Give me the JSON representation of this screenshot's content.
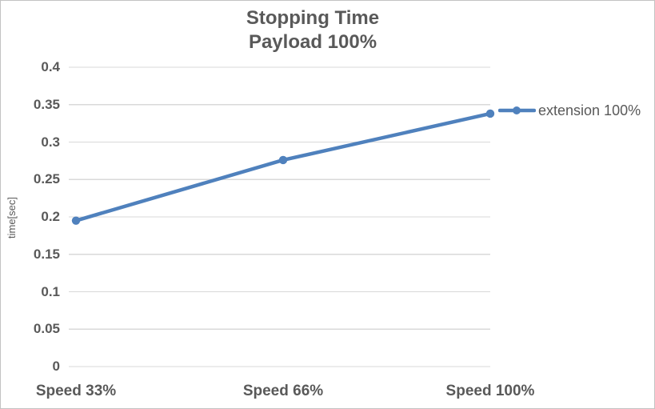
{
  "chart": {
    "title_line1": "Stopping Time",
    "title_line2": "Payload 100%",
    "ylabel": "time[sec]",
    "legend_label": "extension 100%"
  },
  "chart_data": {
    "type": "line",
    "title": "Stopping Time",
    "subtitle": "Payload 100%",
    "categories": [
      "Speed 33%",
      "Speed 66%",
      "Speed 100%"
    ],
    "series": [
      {
        "name": "extension 100%",
        "values": [
          0.195,
          0.276,
          0.338
        ]
      }
    ],
    "xlabel": "",
    "ylabel": "time[sec]",
    "ylim": [
      0,
      0.4
    ],
    "ytick_step": 0.05,
    "ytick_labels": [
      "0",
      "0.05",
      "0.1",
      "0.15",
      "0.2",
      "0.25",
      "0.3",
      "0.35",
      "0.4"
    ],
    "grid": "horizontal",
    "legend_position": "right",
    "marker": "circle",
    "colors": {
      "series": "#4F81BD",
      "text": "#595959",
      "grid": "#D9D9D9",
      "background": "#FFFFFF",
      "border": "#C3C3C3"
    }
  }
}
